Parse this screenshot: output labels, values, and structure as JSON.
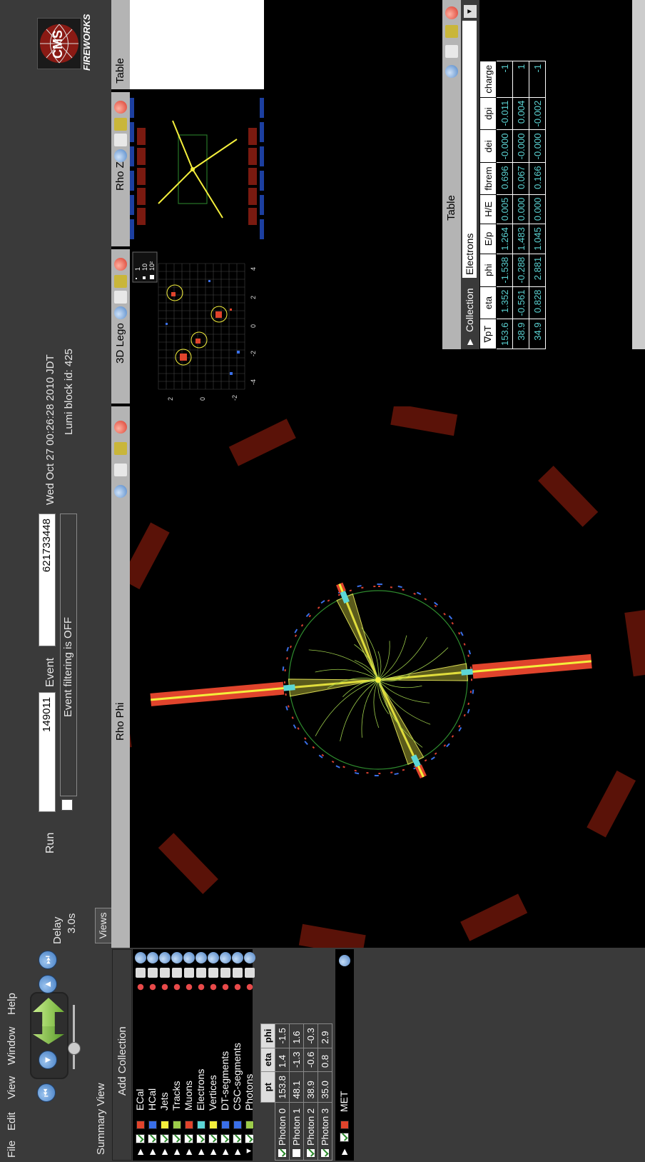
{
  "menu": [
    "File",
    "Edit",
    "View",
    "Window",
    "Help"
  ],
  "toolbar": {
    "delay_label": "Delay",
    "delay_value": "3.0s",
    "run_label": "Run",
    "run_value": "149011",
    "event_label": "Event",
    "event_value": "621733448",
    "filter_text": "Event filtering is OFF",
    "date": "Wed Oct 27 00:26:28 2010 JDT",
    "lumi": "Lumi block id: 425",
    "logo_text": "FIREWORKS",
    "cms_text": "CMS"
  },
  "summary": {
    "title": "Summary View",
    "add_collection": "Add Collection",
    "collections": [
      {
        "name": "ECal",
        "color": "#e0442c",
        "checked": true
      },
      {
        "name": "HCal",
        "color": "#3a6fe8",
        "checked": true
      },
      {
        "name": "Jets",
        "color": "#f4ef3c",
        "checked": true
      },
      {
        "name": "Tracks",
        "color": "#9ccc4a",
        "checked": true
      },
      {
        "name": "Muons",
        "color": "#e0442c",
        "checked": true
      },
      {
        "name": "Electrons",
        "color": "#5cd6d6",
        "checked": true
      },
      {
        "name": "Vertices",
        "color": "#f4ef3c",
        "checked": true
      },
      {
        "name": "DT-segments",
        "color": "#3a6fe8",
        "checked": true
      },
      {
        "name": "CSC-segments",
        "color": "#3a6fe8",
        "checked": true
      },
      {
        "name": "Photons",
        "color": "#9ccc4a",
        "checked": true
      }
    ],
    "photon_table": {
      "headers": [
        "pt",
        "eta",
        "phi"
      ],
      "rows": [
        {
          "name": "Photon 0",
          "checked": true,
          "pt": "153.8",
          "eta": "1.4",
          "phi": "-1.5"
        },
        {
          "name": "Photon 1",
          "checked": false,
          "pt": "48.1",
          "eta": "-1.3",
          "phi": "1.6"
        },
        {
          "name": "Photon 2",
          "checked": true,
          "pt": "38.9",
          "eta": "-0.6",
          "phi": "-0.3"
        },
        {
          "name": "Photon 3",
          "checked": true,
          "pt": "35.0",
          "eta": "0.8",
          "phi": "2.9"
        }
      ]
    },
    "met": {
      "name": "MET",
      "color": "#e0442c",
      "checked": true
    }
  },
  "views": {
    "tab": "Views",
    "rhophi": "Rho Phi",
    "lego": "3D Lego",
    "rhoz": "Rho Z",
    "table": "Table"
  },
  "lego": {
    "legend": [
      "1",
      "10",
      "10²"
    ],
    "eta_ticks": [
      "-4",
      "-2",
      "0",
      "2",
      "4"
    ],
    "phi_ticks": [
      "2",
      "0",
      "-2"
    ]
  },
  "table": {
    "collection_label": "Collection",
    "collection_value": "Electrons",
    "headers": [
      "∇pT",
      "eta",
      "phi",
      "E/p",
      "H/E",
      "fbrem",
      "dei",
      "dpi",
      "charge"
    ],
    "rows": [
      [
        "153.6",
        "1.352",
        "-1.538",
        "1.264",
        "0.005",
        "0.696",
        "-0.000",
        "-0.011",
        "-1"
      ],
      [
        "38.9",
        "-0.561",
        "-0.288",
        "1.483",
        "0.000",
        "0.067",
        "-0.000",
        "0.004",
        "1"
      ],
      [
        "34.9",
        "0.828",
        "2.881",
        "1.045",
        "0.000",
        "0.166",
        "-0.000",
        "-0.002",
        "-1"
      ]
    ]
  },
  "colors": {
    "panel": "#3a3a3a",
    "title_bar": "#b4b4b4",
    "ecal": "#e0442c",
    "hcal": "#3a6fe8",
    "jet": "#f4ef3c",
    "track": "#9ccc4a",
    "electron": "#5cd6d6"
  }
}
